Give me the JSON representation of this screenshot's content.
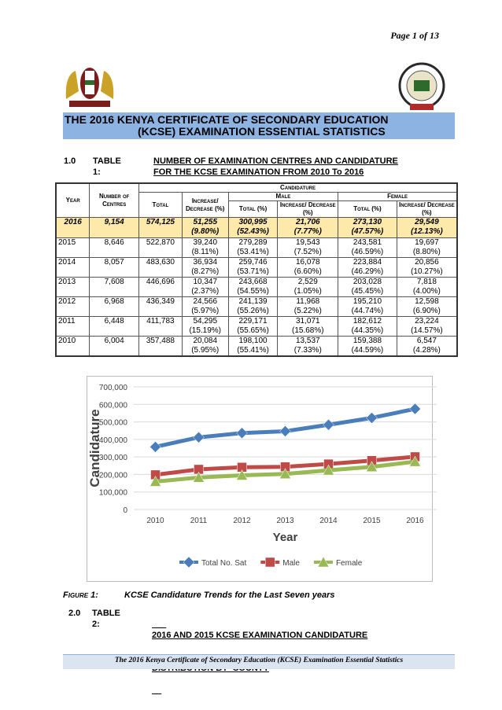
{
  "header": {
    "page": "Page 1 of 13"
  },
  "title": [
    "THE 2016 KENYA CERTIFICATE OF SECONDARY EDUCATION",
    "(KCSE) EXAMINATION ESSENTIAL STATISTICS"
  ],
  "section1": {
    "number": "1.0",
    "label": "TABLE 1:",
    "title": [
      "NUMBER OF EXAMINATION CENTRES AND CANDIDATURE",
      "FOR THE KCSE EXAMINATION FROM 2010 To 2016"
    ]
  },
  "table": {
    "headers": {
      "year": "Year",
      "centres": "Number of Centres",
      "candidature": "Candidature",
      "male": "Male",
      "female": "Female",
      "cols": [
        "Total",
        "Increase/ Decrease (%)",
        "Total (%)",
        "Increase/ Decrease (%)",
        "Total (%)",
        "Increase/ Decrease (%)"
      ]
    },
    "rows": [
      [
        "2016",
        "9,154",
        "574,125",
        [
          "51,255",
          "(9.80%)"
        ],
        [
          "300,995",
          "(52.43%)"
        ],
        [
          "21,706",
          "(7.77%)"
        ],
        [
          "273,130",
          "(47.57%)"
        ],
        [
          "29,549",
          "(12.13%)"
        ]
      ],
      [
        "2015",
        "8,646",
        "522,870",
        [
          "39,240",
          "(8.11%)"
        ],
        [
          "279,289",
          "(53.41%)"
        ],
        [
          "19,543",
          "(7.52%)"
        ],
        [
          "243,581",
          "(46.59%)"
        ],
        [
          "19,697",
          "(8.80%)"
        ]
      ],
      [
        "2014",
        "8,057",
        "483,630",
        [
          "36,934",
          "(8.27%)"
        ],
        [
          "259,746",
          "(53.71%)"
        ],
        [
          "16,078",
          "(6.60%)"
        ],
        [
          "223,884",
          "(46.29%)"
        ],
        [
          "20,856",
          "(10.27%)"
        ]
      ],
      [
        "2013",
        "7,608",
        "446,696",
        [
          "10,347",
          "(2.37%)"
        ],
        [
          "243,668",
          "(54.55%)"
        ],
        [
          "2,529",
          "(1.05%)"
        ],
        [
          "203,028",
          "(45.45%)"
        ],
        [
          "7,818",
          "(4.00%)"
        ]
      ],
      [
        "2012",
        "6,968",
        "436,349",
        [
          "24,566",
          "(5.97%)"
        ],
        [
          "241,139",
          "(55.26%)"
        ],
        [
          "11,968",
          "(5.22%)"
        ],
        [
          "195,210",
          "(44.74%)"
        ],
        [
          "12,598",
          "(6.90%)"
        ]
      ],
      [
        "2011",
        "6,448",
        "411,783",
        [
          "54,295",
          "(15.19%)"
        ],
        [
          "229,171",
          "(55.65%)"
        ],
        [
          "31,071",
          "(15.68%)"
        ],
        [
          "182,612",
          "(44.35%)"
        ],
        [
          "23,224",
          "(14.57%)"
        ]
      ],
      [
        "2010",
        "6,004",
        "357,488",
        [
          "20,084",
          "(5.95%)"
        ],
        [
          "198,100",
          "(55.41%)"
        ],
        [
          "13,537",
          "(7.33%)"
        ],
        [
          "159,388",
          "(44.59%)"
        ],
        [
          "6,547",
          "(4.28%)"
        ]
      ]
    ]
  },
  "chart_data": {
    "type": "line",
    "x_label": "Year",
    "y_label": "Candidature",
    "categories": [
      "2010",
      "2011",
      "2012",
      "2013",
      "2014",
      "2015",
      "2016"
    ],
    "series": [
      {
        "name": "Total No. Sat",
        "color": "#4a7ebb",
        "values": [
          357488,
          411783,
          436349,
          446696,
          483630,
          522870,
          574125
        ]
      },
      {
        "name": "Male",
        "color": "#be4b48",
        "values": [
          198100,
          229171,
          241139,
          243668,
          259746,
          279289,
          300995
        ]
      },
      {
        "name": "Female",
        "color": "#98b954",
        "values": [
          159388,
          182612,
          195210,
          203028,
          223884,
          243581,
          273130
        ]
      }
    ],
    "ylim": [
      0,
      700000
    ],
    "yticks": [
      0,
      {
        "value": 100000,
        "label": "100,000"
      },
      {
        "value": 200000,
        "label": "200,000"
      },
      {
        "value": 300000,
        "label": "300,000"
      },
      {
        "value": 400000,
        "label": "400,000"
      },
      {
        "value": 500000,
        "label": "500,000"
      },
      {
        "value": 600000,
        "label": "600,000"
      },
      {
        "value": 700000,
        "label": "700,000"
      }
    ],
    "grid": true,
    "legend": "bottom"
  },
  "figure": {
    "label": "Figure 1:",
    "caption": "KCSE Candidature Trends for the Last Seven years"
  },
  "section2": {
    "number": "2.0",
    "label": "TABLE 2:",
    "title": [
      "2016 AND 2015 KCSE EXAMINATION CANDIDATURE",
      "DISTRIBUTION BY  COUNTY"
    ]
  },
  "footer": "The 2016 Kenya Certificate of Secondary Education (KCSE) Examination Essential Statistics"
}
